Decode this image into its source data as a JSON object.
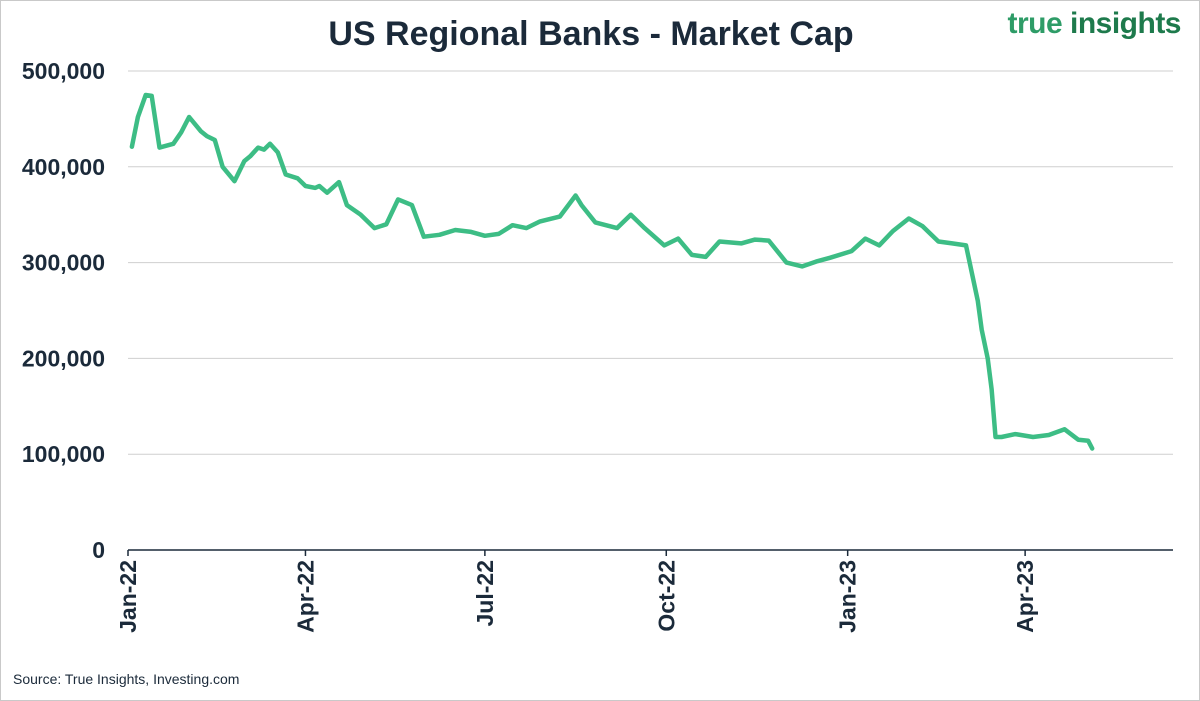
{
  "brand": {
    "part1": "true",
    "part2": "insights"
  },
  "source": "Source: True Insights, Investing.com",
  "colors": {
    "line": "#3dbd85",
    "text": "#1b2a3a",
    "grid": "#cfcfcf",
    "axis": "#1b2a3a"
  },
  "chart_data": {
    "type": "line",
    "title": "US Regional Banks - Market Cap",
    "xlabel": "",
    "ylabel": "",
    "ylim": [
      0,
      500000
    ],
    "yticks": [
      0,
      100000,
      200000,
      300000,
      400000,
      500000
    ],
    "ytick_labels": [
      "0",
      "100,000",
      "200,000",
      "300,000",
      "400,000",
      "500,000"
    ],
    "xlim": [
      "2022-01-01",
      "2023-06-15"
    ],
    "xticks": [
      "2022-01-01",
      "2022-04-01",
      "2022-07-01",
      "2022-10-01",
      "2023-01-01",
      "2023-04-01"
    ],
    "xtick_labels": [
      "Jan-22",
      "Apr-22",
      "Jul-22",
      "Oct-22",
      "Jan-23",
      "Apr-23"
    ],
    "grid": "horizontal",
    "legend": "none",
    "series": [
      {
        "color": "#3dbd85",
        "x": [
          "2022-01-03",
          "2022-01-06",
          "2022-01-10",
          "2022-01-13",
          "2022-01-17",
          "2022-01-24",
          "2022-01-28",
          "2022-02-01",
          "2022-02-07",
          "2022-02-10",
          "2022-02-14",
          "2022-02-18",
          "2022-02-24",
          "2022-03-01",
          "2022-03-04",
          "2022-03-08",
          "2022-03-11",
          "2022-03-14",
          "2022-03-18",
          "2022-03-22",
          "2022-03-28",
          "2022-04-01",
          "2022-04-06",
          "2022-04-08",
          "2022-04-12",
          "2022-04-18",
          "2022-04-22",
          "2022-04-29",
          "2022-05-06",
          "2022-05-12",
          "2022-05-18",
          "2022-05-25",
          "2022-05-31",
          "2022-06-08",
          "2022-06-16",
          "2022-06-24",
          "2022-07-01",
          "2022-07-08",
          "2022-07-15",
          "2022-07-22",
          "2022-07-29",
          "2022-08-08",
          "2022-08-16",
          "2022-08-19",
          "2022-08-26",
          "2022-09-06",
          "2022-09-13",
          "2022-09-20",
          "2022-09-30",
          "2022-10-07",
          "2022-10-14",
          "2022-10-21",
          "2022-10-28",
          "2022-11-08",
          "2022-11-15",
          "2022-11-22",
          "2022-12-01",
          "2022-12-09",
          "2022-12-16",
          "2022-12-23",
          "2023-01-03",
          "2023-01-10",
          "2023-01-17",
          "2023-01-24",
          "2023-02-01",
          "2023-02-08",
          "2023-02-16",
          "2023-02-23",
          "2023-03-02",
          "2023-03-08",
          "2023-03-10",
          "2023-03-13",
          "2023-03-15",
          "2023-03-17",
          "2023-03-20",
          "2023-03-27",
          "2023-04-05",
          "2023-04-13",
          "2023-04-21",
          "2023-04-28",
          "2023-05-03",
          "2023-05-05"
        ],
        "values": [
          421000,
          452000,
          475000,
          474000,
          420000,
          424000,
          436000,
          452000,
          437000,
          432000,
          428000,
          400000,
          385000,
          406000,
          411000,
          420000,
          418000,
          424000,
          415000,
          392000,
          388000,
          380000,
          378000,
          380000,
          373000,
          384000,
          360000,
          350000,
          336000,
          340000,
          366000,
          360000,
          327000,
          329000,
          334000,
          332000,
          328000,
          330000,
          339000,
          336000,
          343000,
          348000,
          370000,
          360000,
          342000,
          336000,
          350000,
          336000,
          318000,
          325000,
          308000,
          306000,
          322000,
          320000,
          324000,
          323000,
          300000,
          296000,
          301000,
          305000,
          312000,
          325000,
          318000,
          333000,
          346000,
          338000,
          322000,
          320000,
          318000,
          260000,
          230000,
          200000,
          168000,
          118000,
          118000,
          121000,
          118000,
          120000,
          126000,
          115000,
          114000,
          106000
        ]
      }
    ]
  }
}
